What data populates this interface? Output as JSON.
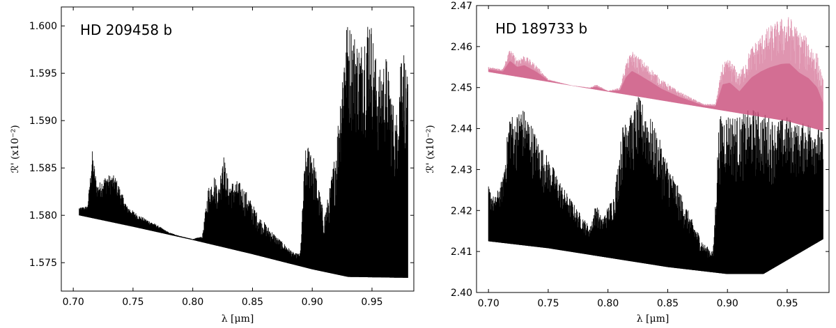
{
  "chart_data": [
    {
      "type": "line",
      "annotation": "HD 209458 b",
      "xlabel": "λ [μm]",
      "ylabel": "ℛ' (x10⁻²)",
      "xlim": [
        0.69,
        0.985
      ],
      "ylim": [
        1.572,
        1.602
      ],
      "xticks": [
        "0.70",
        "0.75",
        "0.80",
        "0.85",
        "0.90",
        "0.95"
      ],
      "xtick_values": [
        0.7,
        0.75,
        0.8,
        0.85,
        0.9,
        0.95
      ],
      "yticks": [
        "1.575",
        "1.580",
        "1.585",
        "1.590",
        "1.595",
        "1.600"
      ],
      "ytick_values": [
        1.575,
        1.58,
        1.585,
        1.59,
        1.595,
        1.6
      ],
      "grid": false,
      "series": [
        {
          "color": "#000000",
          "baseline": [
            [
              0.705,
              1.58
            ],
            [
              0.75,
              1.5788
            ],
            [
              0.8,
              1.5774
            ],
            [
              0.85,
              1.5759
            ],
            [
              0.9,
              1.5743
            ],
            [
              0.93,
              1.5735
            ],
            [
              0.98,
              1.5734
            ]
          ],
          "envelope": [
            [
              0.705,
              1.5808
            ],
            [
              0.712,
              1.581
            ],
            [
              0.716,
              1.5868
            ],
            [
              0.72,
              1.5832
            ],
            [
              0.728,
              1.5843
            ],
            [
              0.735,
              1.5842
            ],
            [
              0.745,
              1.581
            ],
            [
              0.755,
              1.58
            ],
            [
              0.77,
              1.579
            ],
            [
              0.78,
              1.5782
            ],
            [
              0.79,
              1.5778
            ],
            [
              0.8,
              1.5775
            ],
            [
              0.808,
              1.5778
            ],
            [
              0.813,
              1.583
            ],
            [
              0.818,
              1.5843
            ],
            [
              0.822,
              1.583
            ],
            [
              0.825,
              1.5871
            ],
            [
              0.83,
              1.5835
            ],
            [
              0.838,
              1.5837
            ],
            [
              0.845,
              1.5825
            ],
            [
              0.855,
              1.58
            ],
            [
              0.87,
              1.5778
            ],
            [
              0.885,
              1.576
            ],
            [
              0.89,
              1.576
            ],
            [
              0.894,
              1.5868
            ],
            [
              0.899,
              1.588
            ],
            [
              0.904,
              1.584
            ],
            [
              0.91,
              1.58
            ],
            [
              0.915,
              1.5832
            ],
            [
              0.92,
              1.5875
            ],
            [
              0.928,
              1.6005
            ],
            [
              0.933,
              1.6
            ],
            [
              0.94,
              1.598
            ],
            [
              0.948,
              1.6018
            ],
            [
              0.955,
              1.595
            ],
            [
              0.962,
              1.597
            ],
            [
              0.97,
              1.59
            ],
            [
              0.975,
              1.5995
            ],
            [
              0.98,
              1.594
            ]
          ]
        }
      ]
    },
    {
      "type": "line",
      "annotation": "HD 189733 b",
      "xlabel": "λ [μm]",
      "ylabel": "ℛ' (x10⁻²)",
      "xlim": [
        0.69,
        0.985
      ],
      "ylim": [
        2.4,
        2.47
      ],
      "xticks": [
        "0.70",
        "0.75",
        "0.80",
        "0.85",
        "0.90",
        "0.95"
      ],
      "xtick_values": [
        0.7,
        0.75,
        0.8,
        0.85,
        0.9,
        0.95
      ],
      "yticks": [
        "2.40",
        "2.41",
        "2.42",
        "2.43",
        "2.44",
        "2.45",
        "2.46",
        "2.47"
      ],
      "ytick_values": [
        2.4,
        2.41,
        2.42,
        2.43,
        2.44,
        2.45,
        2.46,
        2.47
      ],
      "grid": false,
      "series": [
        {
          "color": "#000000",
          "baseline": [
            [
              0.7,
              2.4125
            ],
            [
              0.75,
              2.4108
            ],
            [
              0.8,
              2.4085
            ],
            [
              0.85,
              2.4062
            ],
            [
              0.9,
              2.4045
            ],
            [
              0.93,
              2.4045
            ],
            [
              0.98,
              2.413
            ]
          ],
          "envelope": [
            [
              0.7,
              2.426
            ],
            [
              0.705,
              2.423
            ],
            [
              0.712,
              2.428
            ],
            [
              0.718,
              2.445
            ],
            [
              0.722,
              2.442
            ],
            [
              0.727,
              2.446
            ],
            [
              0.735,
              2.442
            ],
            [
              0.742,
              2.437
            ],
            [
              0.752,
              2.432
            ],
            [
              0.762,
              2.426
            ],
            [
              0.775,
              2.42
            ],
            [
              0.785,
              2.416
            ],
            [
              0.79,
              2.422
            ],
            [
              0.795,
              2.418
            ],
            [
              0.805,
              2.424
            ],
            [
              0.815,
              2.447
            ],
            [
              0.82,
              2.443
            ],
            [
              0.825,
              2.448
            ],
            [
              0.832,
              2.445
            ],
            [
              0.84,
              2.44
            ],
            [
              0.85,
              2.432
            ],
            [
              0.86,
              2.425
            ],
            [
              0.87,
              2.418
            ],
            [
              0.88,
              2.412
            ],
            [
              0.888,
              2.41
            ],
            [
              0.893,
              2.443
            ],
            [
              0.9,
              2.444
            ],
            [
              0.91,
              2.443
            ],
            [
              0.92,
              2.445
            ],
            [
              0.93,
              2.444
            ],
            [
              0.94,
              2.442
            ],
            [
              0.95,
              2.443
            ],
            [
              0.96,
              2.441
            ],
            [
              0.97,
              2.442
            ],
            [
              0.98,
              2.439
            ]
          ]
        },
        {
          "color": "#c94f7c",
          "baseline": [
            [
              0.7,
              2.4538
            ],
            [
              0.75,
              2.4514
            ],
            [
              0.8,
              2.449
            ],
            [
              0.85,
              2.4466
            ],
            [
              0.9,
              2.4442
            ],
            [
              0.95,
              2.4418
            ],
            [
              0.98,
              2.4394
            ]
          ],
          "envelope": [
            [
              0.7,
              2.455
            ],
            [
              0.712,
              2.4545
            ],
            [
              0.718,
              2.4595
            ],
            [
              0.724,
              2.457
            ],
            [
              0.73,
              2.458
            ],
            [
              0.74,
              2.4555
            ],
            [
              0.75,
              2.452
            ],
            [
              0.77,
              2.4505
            ],
            [
              0.785,
              2.45
            ],
            [
              0.79,
              2.4508
            ],
            [
              0.8,
              2.4492
            ],
            [
              0.81,
              2.45
            ],
            [
              0.815,
              2.456
            ],
            [
              0.82,
              2.459
            ],
            [
              0.826,
              2.4575
            ],
            [
              0.835,
              2.455
            ],
            [
              0.845,
              2.452
            ],
            [
              0.86,
              2.449
            ],
            [
              0.88,
              2.446
            ],
            [
              0.89,
              2.446
            ],
            [
              0.896,
              2.456
            ],
            [
              0.902,
              2.457
            ],
            [
              0.91,
              2.4535
            ],
            [
              0.92,
              2.46
            ],
            [
              0.928,
              2.463
            ],
            [
              0.935,
              2.465
            ],
            [
              0.945,
              2.467
            ],
            [
              0.952,
              2.4675
            ],
            [
              0.96,
              2.464
            ],
            [
              0.968,
              2.462
            ],
            [
              0.975,
              2.4585
            ],
            [
              0.98,
              2.452
            ]
          ]
        }
      ]
    }
  ]
}
